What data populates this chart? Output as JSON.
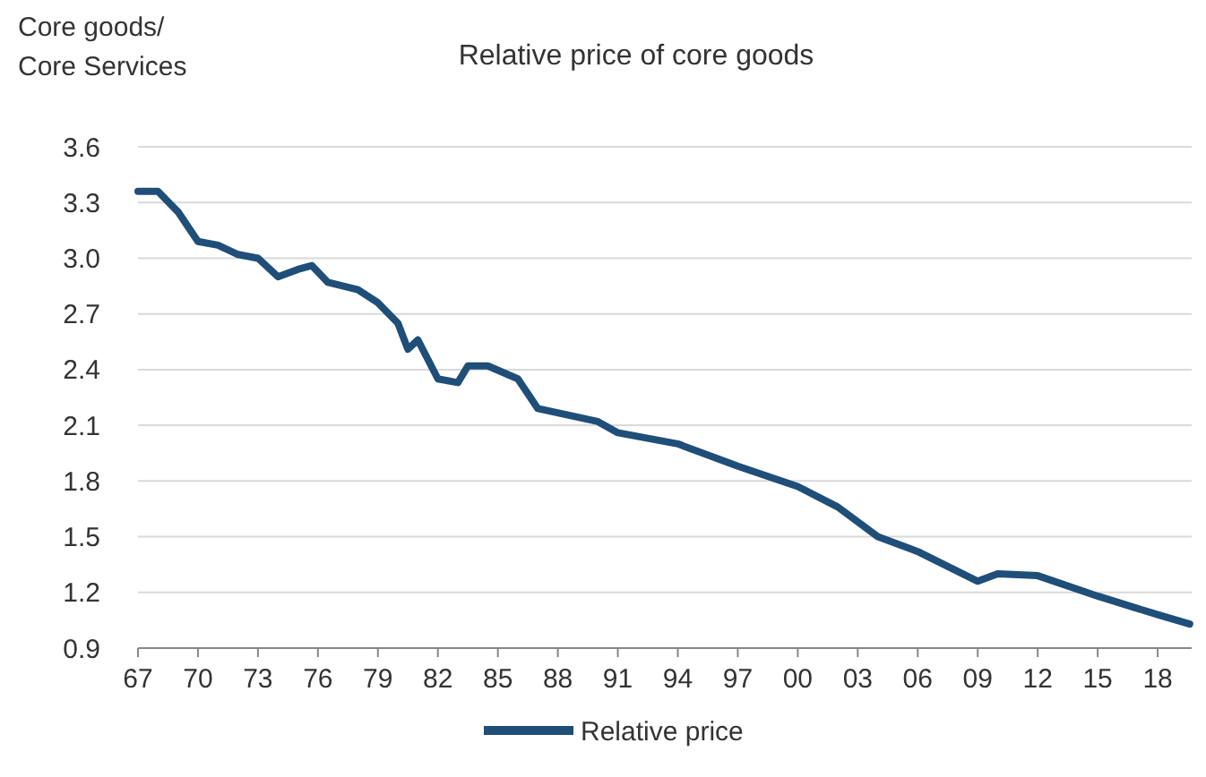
{
  "chart_data": {
    "type": "line",
    "title": "Relative price of core goods",
    "ylabel": "Core goods/\nCore Services",
    "xlim": [
      1967,
      2019.7
    ],
    "xticks": [
      {
        "value": 1967,
        "label": "67"
      },
      {
        "value": 1970,
        "label": "70"
      },
      {
        "value": 1973,
        "label": "73"
      },
      {
        "value": 1976,
        "label": "76"
      },
      {
        "value": 1979,
        "label": "79"
      },
      {
        "value": 1982,
        "label": "82"
      },
      {
        "value": 1985,
        "label": "85"
      },
      {
        "value": 1988,
        "label": "88"
      },
      {
        "value": 1991,
        "label": "91"
      },
      {
        "value": 1994,
        "label": "94"
      },
      {
        "value": 1997,
        "label": "97"
      },
      {
        "value": 2000,
        "label": "00"
      },
      {
        "value": 2003,
        "label": "03"
      },
      {
        "value": 2006,
        "label": "06"
      },
      {
        "value": 2009,
        "label": "09"
      },
      {
        "value": 2012,
        "label": "12"
      },
      {
        "value": 2015,
        "label": "15"
      },
      {
        "value": 2018,
        "label": "18"
      }
    ],
    "ylim": [
      0.9,
      3.6
    ],
    "yticks": [
      {
        "value": 0.9,
        "label": "0.9"
      },
      {
        "value": 1.2,
        "label": "1.2"
      },
      {
        "value": 1.5,
        "label": "1.5"
      },
      {
        "value": 1.8,
        "label": "1.8"
      },
      {
        "value": 2.1,
        "label": "2.1"
      },
      {
        "value": 2.4,
        "label": "2.4"
      },
      {
        "value": 2.7,
        "label": "2.7"
      },
      {
        "value": 3.0,
        "label": "3.0"
      },
      {
        "value": 3.3,
        "label": "3.3"
      },
      {
        "value": 3.6,
        "label": "3.6"
      }
    ],
    "grid": "y",
    "legend": "bottom",
    "marker": "none",
    "line_style": "solid",
    "series": [
      {
        "name": "Relative price",
        "color": "#1f4e79",
        "x": [
          1967,
          1968,
          1969,
          1970,
          1971,
          1972,
          1973,
          1974,
          1975,
          1975.7,
          1976.5,
          1978,
          1979,
          1980,
          1980.5,
          1981,
          1982,
          1983,
          1983.5,
          1984.5,
          1986,
          1987,
          1990,
          1991,
          1994,
          1997,
          2000,
          2002,
          2004,
          2006,
          2009,
          2010,
          2012,
          2015,
          2018,
          2019.6
        ],
        "values": [
          3.36,
          3.36,
          3.25,
          3.09,
          3.07,
          3.02,
          3.0,
          2.9,
          2.94,
          2.96,
          2.87,
          2.83,
          2.76,
          2.65,
          2.51,
          2.56,
          2.35,
          2.33,
          2.42,
          2.42,
          2.35,
          2.19,
          2.12,
          2.06,
          2.0,
          1.88,
          1.77,
          1.66,
          1.5,
          1.42,
          1.26,
          1.3,
          1.29,
          1.18,
          1.08,
          1.03
        ]
      }
    ]
  }
}
